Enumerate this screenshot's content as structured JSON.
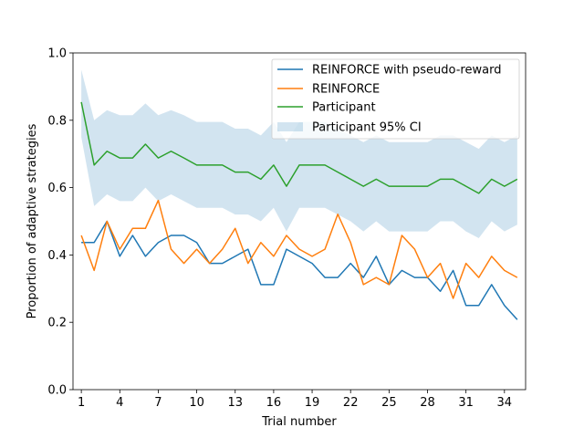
{
  "chart_data": {
    "type": "line",
    "title": "",
    "xlabel": "Trial number",
    "ylabel": "Proportion of adaptive strategies",
    "xlim": [
      0.35,
      35.65
    ],
    "ylim": [
      0.0,
      1.0
    ],
    "xticks": [
      1,
      4,
      7,
      10,
      13,
      16,
      19,
      22,
      25,
      28,
      31,
      34
    ],
    "yticks": [
      0.0,
      0.2,
      0.4,
      0.6,
      0.8,
      1.0
    ],
    "ytick_labels": [
      "0.0",
      "0.2",
      "0.4",
      "0.6",
      "0.8",
      "1.0"
    ],
    "grid": false,
    "legend_position": "top-right",
    "x": [
      1,
      2,
      3,
      4,
      5,
      6,
      7,
      8,
      9,
      10,
      11,
      12,
      13,
      14,
      15,
      16,
      17,
      18,
      19,
      20,
      21,
      22,
      23,
      24,
      25,
      26,
      27,
      28,
      29,
      30,
      31,
      32,
      33,
      34,
      35
    ],
    "series": [
      {
        "name": "REINFORCE with pseudo-reward",
        "color": "#1f77b4",
        "values": [
          0.437,
          0.437,
          0.5,
          0.396,
          0.458,
          0.396,
          0.437,
          0.458,
          0.458,
          0.437,
          0.375,
          0.375,
          0.396,
          0.417,
          0.312,
          0.312,
          0.417,
          0.396,
          0.375,
          0.333,
          0.333,
          0.375,
          0.333,
          0.396,
          0.312,
          0.354,
          0.333,
          0.333,
          0.292,
          0.354,
          0.25,
          0.25,
          0.312,
          0.25,
          0.208
        ]
      },
      {
        "name": "REINFORCE",
        "color": "#ff7f0e",
        "values": [
          0.458,
          0.354,
          0.5,
          0.417,
          0.479,
          0.479,
          0.562,
          0.417,
          0.375,
          0.417,
          0.375,
          0.417,
          0.479,
          0.375,
          0.437,
          0.396,
          0.458,
          0.417,
          0.396,
          0.417,
          0.521,
          0.437,
          0.312,
          0.333,
          0.312,
          0.458,
          0.417,
          0.333,
          0.375,
          0.271,
          0.375,
          0.333,
          0.396,
          0.354,
          0.333
        ]
      },
      {
        "name": "Participant",
        "color": "#2ca02c",
        "values": [
          0.854,
          0.667,
          0.708,
          0.688,
          0.688,
          0.729,
          0.688,
          0.708,
          0.688,
          0.667,
          0.667,
          0.667,
          0.646,
          0.646,
          0.625,
          0.667,
          0.604,
          0.667,
          0.667,
          0.667,
          0.646,
          0.625,
          0.604,
          0.625,
          0.604,
          0.604,
          0.604,
          0.604,
          0.625,
          0.625,
          0.604,
          0.583,
          0.625,
          0.604,
          0.625
        ]
      }
    ],
    "ci": {
      "name": "Participant 95% CI",
      "color": "#1f77b4",
      "opacity": 0.2,
      "lower": [
        0.75,
        0.545,
        0.58,
        0.56,
        0.56,
        0.6,
        0.56,
        0.58,
        0.56,
        0.54,
        0.54,
        0.54,
        0.52,
        0.52,
        0.5,
        0.54,
        0.47,
        0.54,
        0.54,
        0.54,
        0.52,
        0.5,
        0.47,
        0.5,
        0.47,
        0.47,
        0.47,
        0.47,
        0.5,
        0.5,
        0.47,
        0.45,
        0.5,
        0.47,
        0.49
      ],
      "upper": [
        0.95,
        0.8,
        0.83,
        0.815,
        0.815,
        0.85,
        0.815,
        0.83,
        0.815,
        0.795,
        0.795,
        0.795,
        0.775,
        0.775,
        0.755,
        0.795,
        0.735,
        0.795,
        0.795,
        0.795,
        0.775,
        0.755,
        0.735,
        0.755,
        0.735,
        0.735,
        0.735,
        0.735,
        0.755,
        0.755,
        0.735,
        0.715,
        0.755,
        0.735,
        0.755
      ]
    }
  }
}
